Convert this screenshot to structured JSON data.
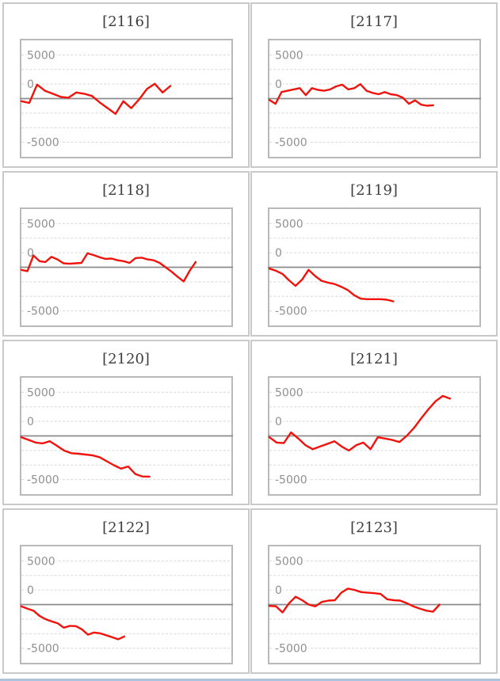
{
  "page": {
    "kind": "slot-machine-slump-graph-grid",
    "rows": 4,
    "cols": 2
  },
  "chart_config": {
    "type": "line",
    "tick_labels": [
      "5000",
      "0",
      "-5000"
    ],
    "tick_values": [
      5000,
      0,
      -5000
    ],
    "y_range": [
      -6667,
      6667
    ],
    "gridline_step": 1667,
    "grid": "horizontal-dotted",
    "zero_axis": "solid",
    "legend": "none",
    "xlabel": "",
    "ylabel": ""
  },
  "colors": {
    "line": "#f2120c",
    "grid_dotted": "#d8d8d8",
    "zero_axis": "#8b8b8b",
    "tick_text": "#909090",
    "chart_border": "#b9b9b9",
    "panel_border": "#c9c9c9",
    "title_text": "#3d3d3d",
    "footer_divider": "#aec3dd"
  },
  "chart_data": [
    {
      "type": "line",
      "title": "[2116]",
      "machine_id": "2116",
      "span": 0.71,
      "values": [
        -300,
        -500,
        1600,
        900,
        550,
        200,
        100,
        700,
        550,
        300,
        -450,
        -1100,
        -1750,
        -300,
        -1100,
        -100,
        1100,
        1700,
        700,
        1450
      ]
    },
    {
      "type": "line",
      "title": "[2117]",
      "machine_id": "2117",
      "span": 0.78,
      "values": [
        -150,
        -600,
        750,
        900,
        1050,
        1200,
        400,
        1200,
        1000,
        900,
        1050,
        1400,
        1600,
        1050,
        1200,
        1650,
        900,
        650,
        500,
        750,
        500,
        400,
        100,
        -600,
        -200,
        -700,
        -820,
        -760
      ]
    },
    {
      "type": "line",
      "title": "[2118]",
      "machine_id": "2118",
      "span": 0.83,
      "values": [
        -300,
        -450,
        1350,
        700,
        600,
        1200,
        900,
        450,
        400,
        450,
        500,
        1600,
        1400,
        1150,
        950,
        1000,
        800,
        700,
        500,
        1050,
        1100,
        900,
        800,
        500,
        0,
        -520,
        -1100,
        -1620,
        -400,
        600
      ]
    },
    {
      "type": "line",
      "title": "[2119]",
      "machine_id": "2119",
      "span": 0.59,
      "values": [
        -150,
        -400,
        -760,
        -1500,
        -2130,
        -1430,
        -300,
        -1000,
        -1550,
        -1770,
        -1920,
        -2230,
        -2600,
        -3200,
        -3600,
        -3660,
        -3660,
        -3660,
        -3720,
        -3900
      ]
    },
    {
      "type": "line",
      "title": "[2120]",
      "machine_id": "2120",
      "span": 0.61,
      "values": [
        -150,
        -450,
        -760,
        -850,
        -610,
        -1130,
        -1680,
        -1980,
        -2040,
        -2130,
        -2230,
        -2440,
        -2900,
        -3360,
        -3750,
        -3500,
        -4360,
        -4640,
        -4660
      ]
    },
    {
      "type": "line",
      "title": "[2121]",
      "machine_id": "2121",
      "span": 0.86,
      "values": [
        -150,
        -760,
        -820,
        400,
        -300,
        -1070,
        -1520,
        -1220,
        -920,
        -610,
        -1220,
        -1680,
        -1070,
        -760,
        -1520,
        -150,
        -300,
        -460,
        -700,
        0,
        900,
        2000,
        3050,
        3970,
        4580,
        4270
      ]
    },
    {
      "type": "line",
      "title": "[2122]",
      "machine_id": "2122",
      "span": 0.49,
      "values": [
        -200,
        -460,
        -700,
        -1300,
        -1680,
        -1920,
        -2140,
        -2650,
        -2440,
        -2470,
        -2840,
        -3450,
        -3200,
        -3290,
        -3510,
        -3750,
        -3970,
        -3660
      ]
    },
    {
      "type": "line",
      "title": "[2123]",
      "machine_id": "2123",
      "span": 0.81,
      "values": [
        -150,
        -200,
        -900,
        150,
        900,
        500,
        0,
        -200,
        300,
        450,
        500,
        1370,
        1830,
        1680,
        1430,
        1370,
        1310,
        1220,
        610,
        500,
        450,
        150,
        -200,
        -460,
        -700,
        -820,
        0
      ]
    }
  ]
}
